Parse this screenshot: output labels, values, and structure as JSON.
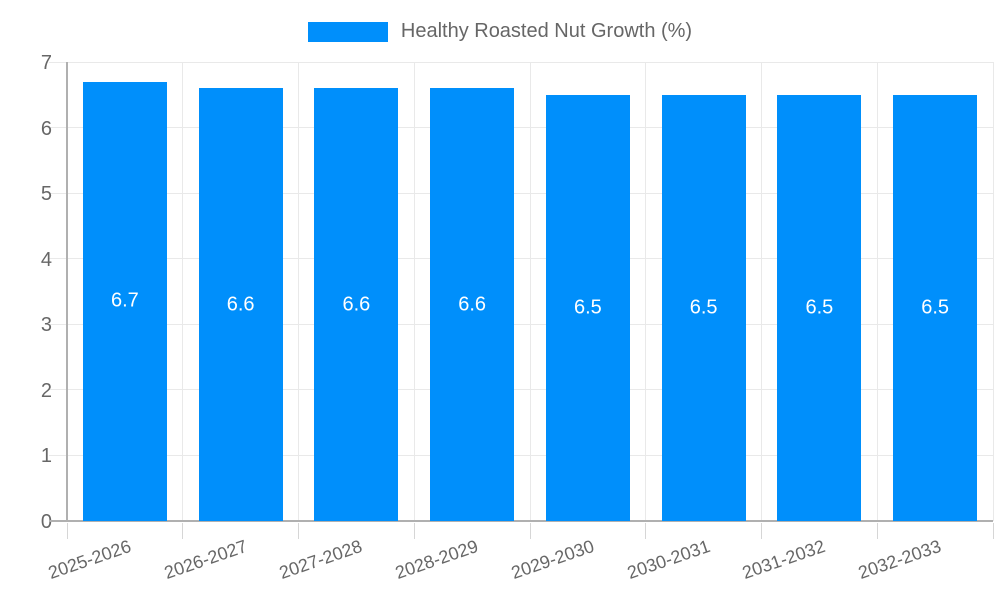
{
  "legend": {
    "label": "Healthy Roasted Nut Growth (%)"
  },
  "colors": {
    "bar": "#008FFB",
    "grid": "#e9e9e9",
    "axis": "#b0b0b0",
    "tick": "#d6d6d6",
    "axis_label": "#676767",
    "value_label": "#ffffff"
  },
  "chart_data": {
    "type": "bar",
    "title": "Healthy Roasted Nut Growth (%)",
    "categories": [
      "2025-2026",
      "2026-2027",
      "2027-2028",
      "2028-2029",
      "2029-2030",
      "2030-2031",
      "2031-2032",
      "2032-2033"
    ],
    "values": [
      6.7,
      6.6,
      6.6,
      6.6,
      6.5,
      6.5,
      6.5,
      6.5
    ],
    "data_labels": [
      "6.7",
      "6.6",
      "6.6",
      "6.6",
      "6.5",
      "6.5",
      "6.5",
      "6.5"
    ],
    "xlabel": "",
    "ylabel": "",
    "ylim": [
      0,
      7
    ],
    "yticks": [
      0,
      1,
      2,
      3,
      4,
      5,
      6,
      7
    ],
    "grid": true,
    "legend_position": "top",
    "data_labels_inside_bars": true
  }
}
